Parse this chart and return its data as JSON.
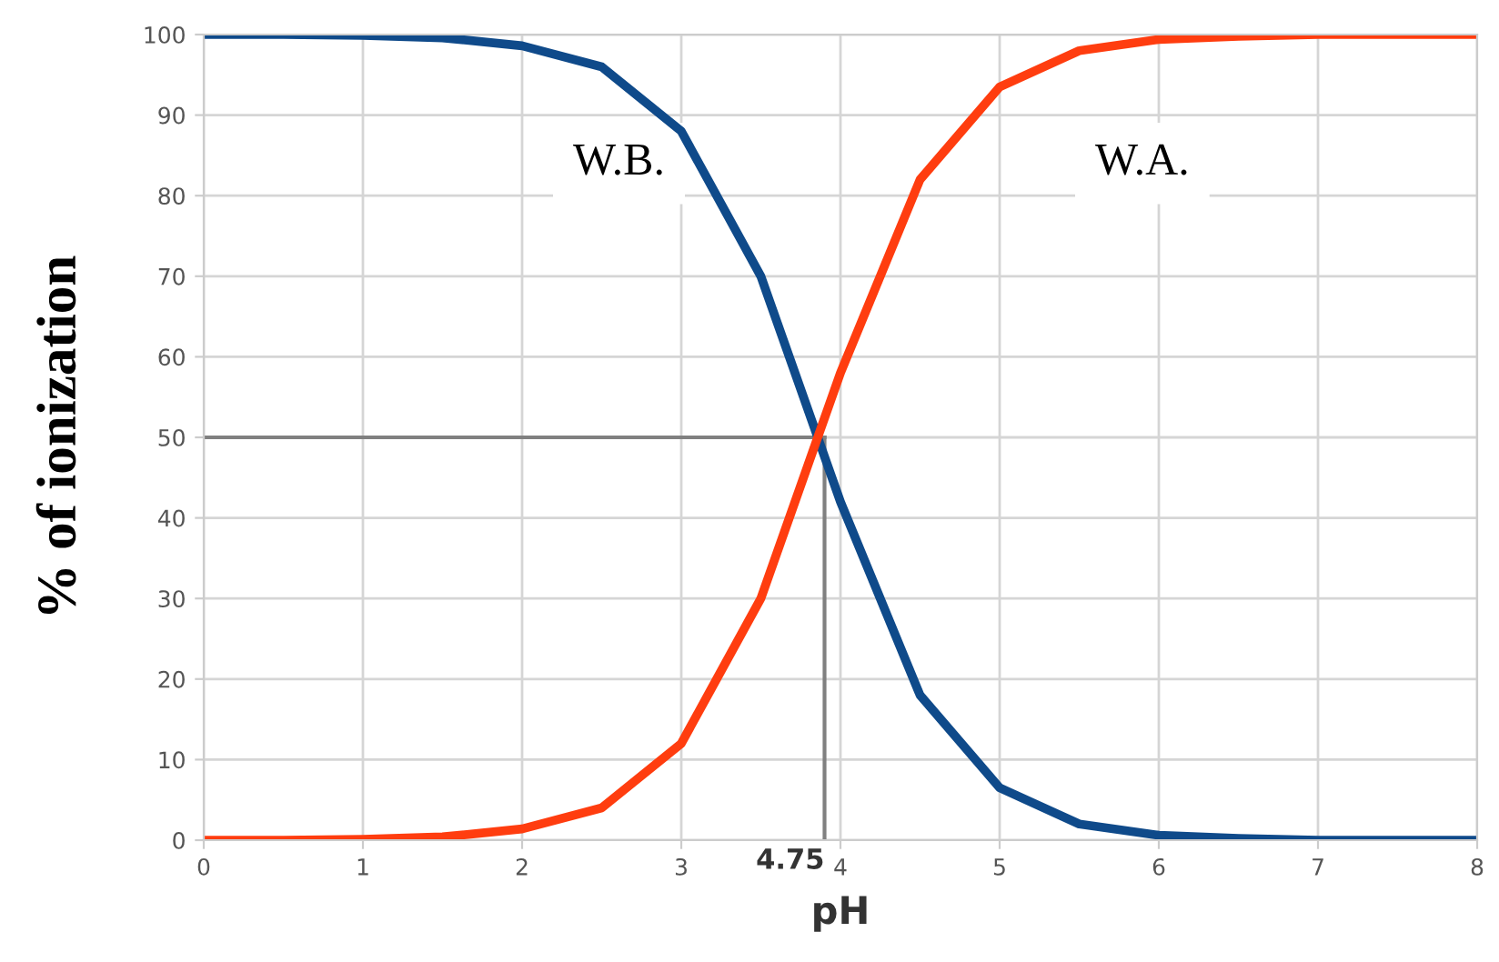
{
  "chart_data": {
    "type": "line",
    "xlabel": "pH",
    "ylabel": "% of ionization",
    "x": [
      0,
      0.5,
      1,
      1.5,
      2,
      2.5,
      3,
      3.5,
      4,
      4.5,
      5,
      5.5,
      6,
      6.5,
      7,
      7.5,
      8
    ],
    "series": [
      {
        "color": "#0f4a8a",
        "values": [
          100,
          100,
          99.9,
          99.6,
          98.6,
          96,
          88,
          70,
          42,
          18,
          6.5,
          2,
          0.6,
          0.2,
          0,
          0,
          0
        ]
      },
      {
        "color": "#ff3d0f",
        "values": [
          0,
          0,
          0.1,
          0.4,
          1.4,
          4,
          12,
          30,
          58,
          82,
          93.5,
          98,
          99.4,
          99.8,
          100,
          100,
          100
        ]
      }
    ],
    "annotations": [
      "W.B.",
      "W.A.",
      "4.75"
    ],
    "ref_lines": [
      {
        "axis": "x",
        "value": 3.9,
        "color": "#808080"
      },
      {
        "axis": "y",
        "value": 50,
        "color": "#808080"
      }
    ],
    "xlim": [
      0,
      8
    ],
    "xticks": [
      0,
      1,
      2,
      3,
      4,
      5,
      6,
      7,
      8
    ],
    "ylim": [
      0,
      100
    ],
    "yticks": [
      0,
      10,
      20,
      30,
      40,
      50,
      60,
      70,
      80,
      90,
      100
    ],
    "grid": true,
    "marker": "none",
    "line_style": "solid"
  }
}
